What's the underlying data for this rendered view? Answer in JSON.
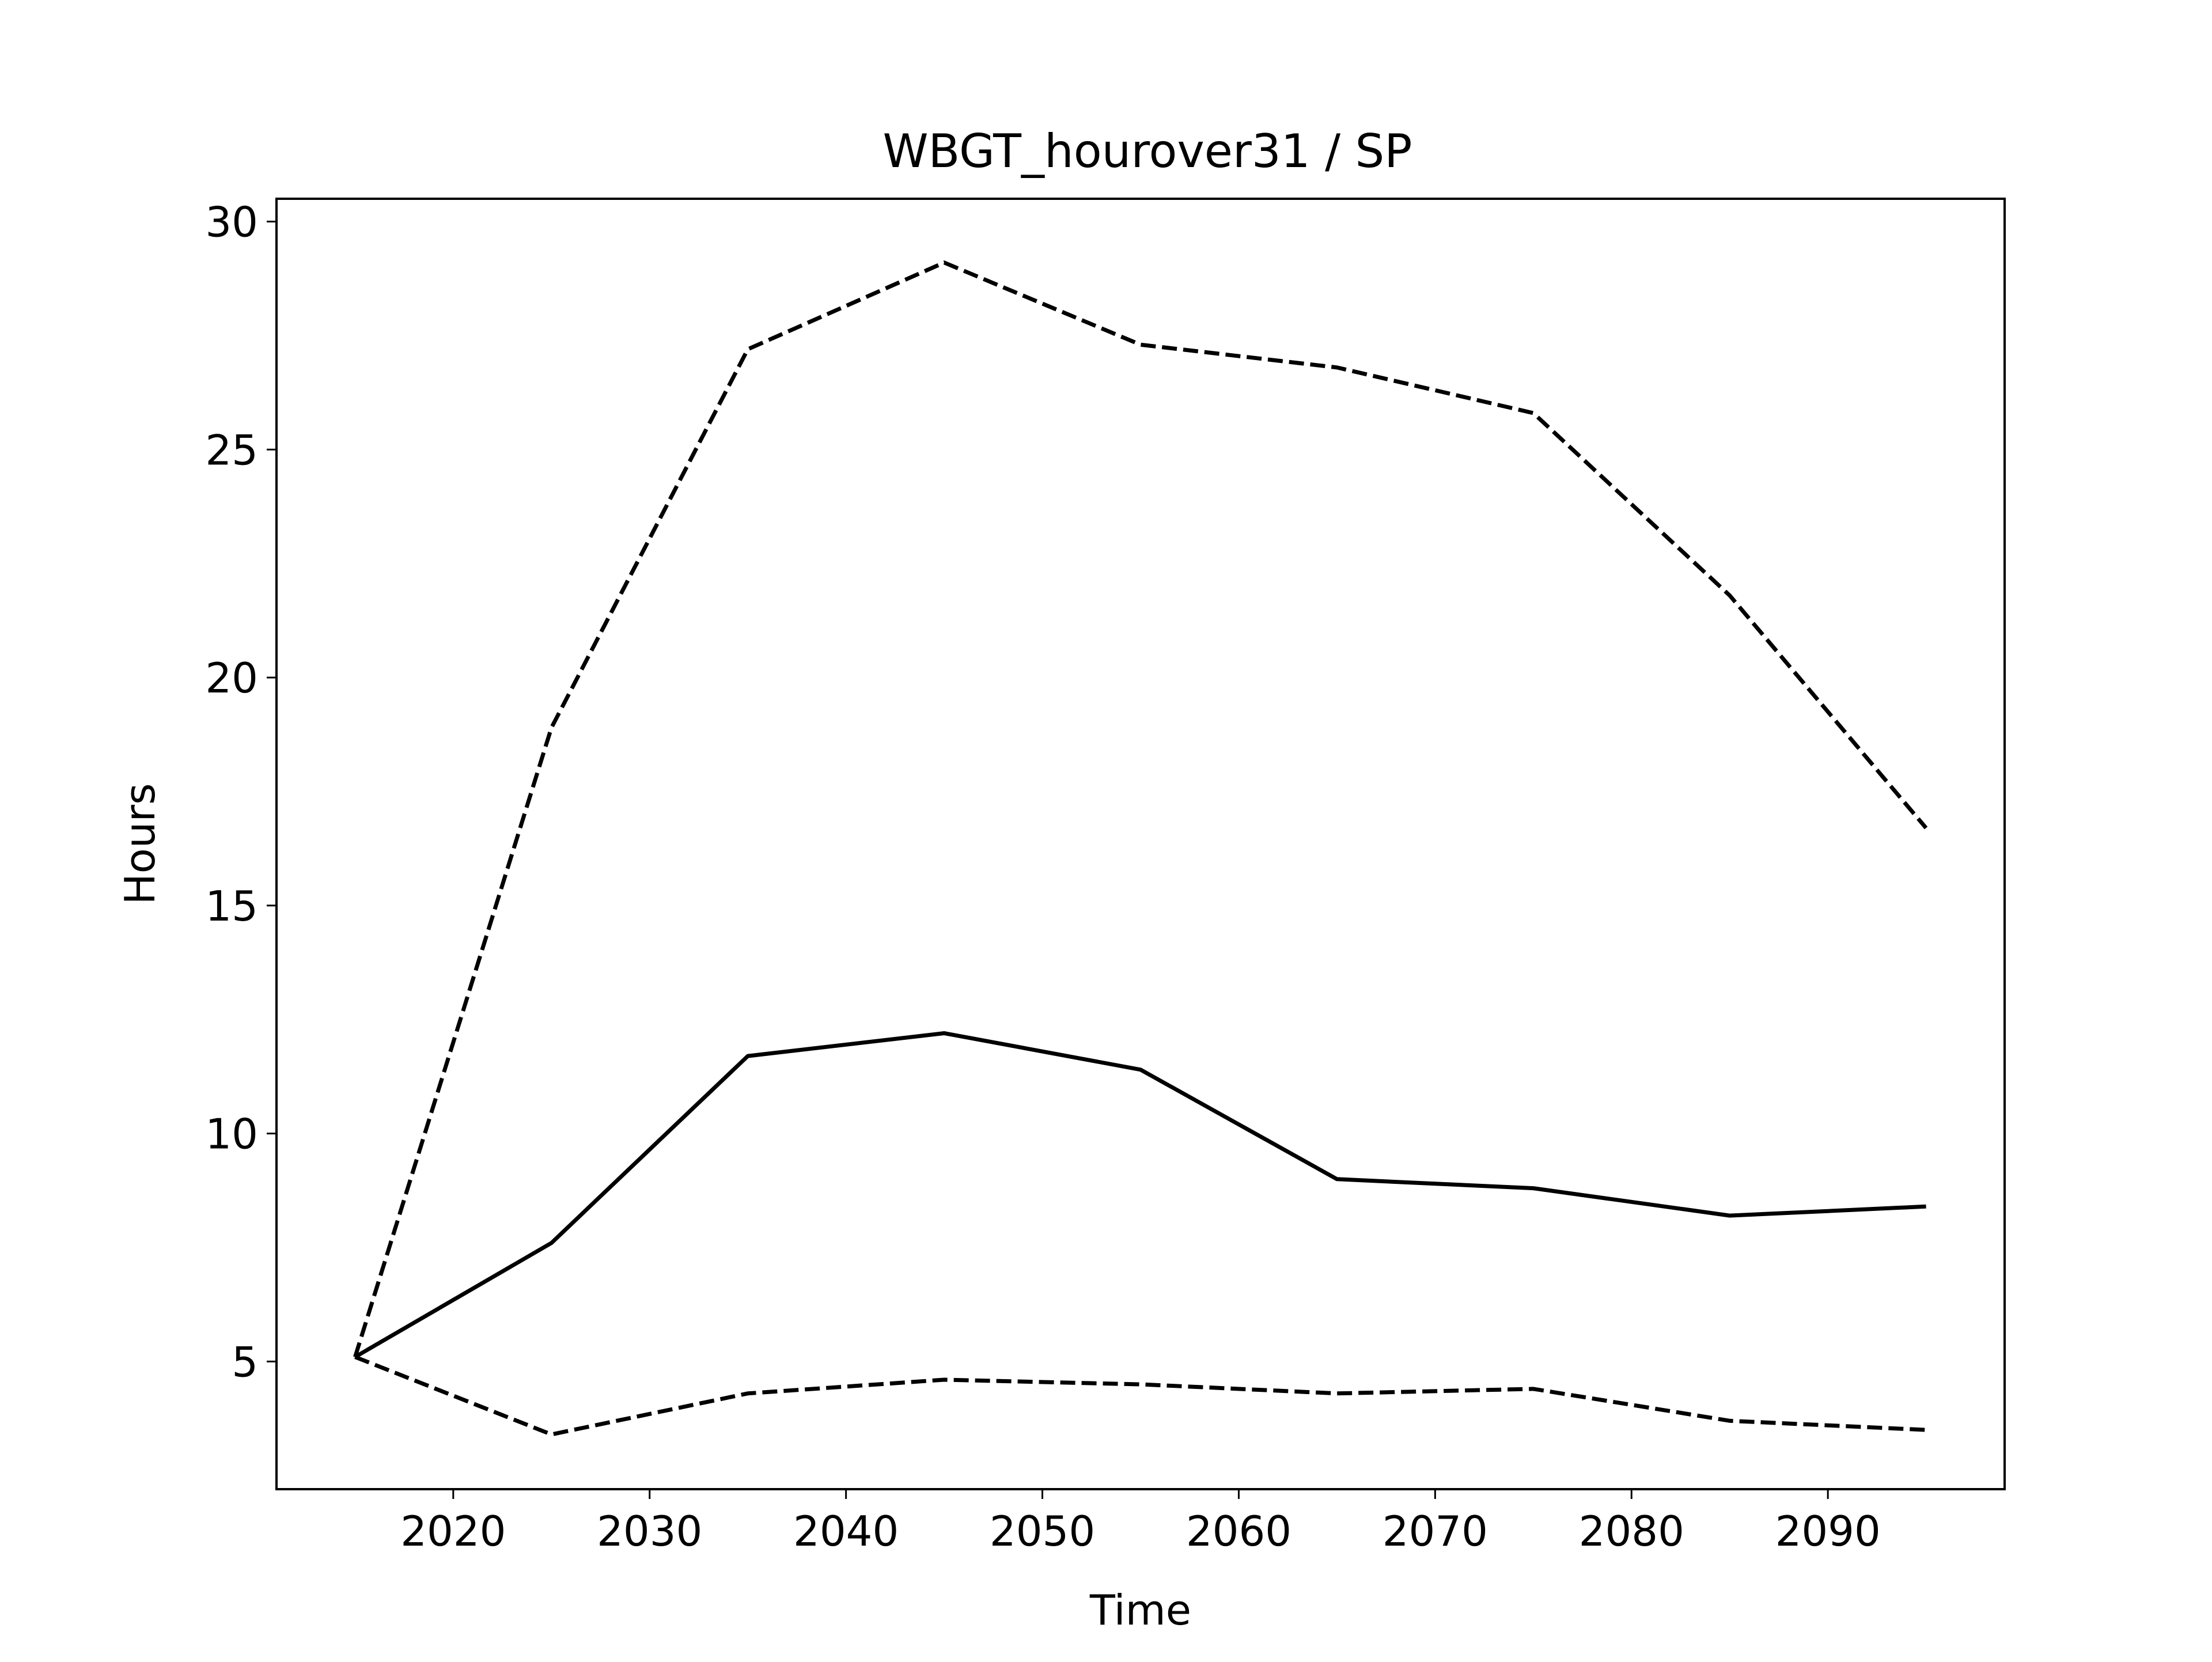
{
  "chart_data": {
    "type": "line",
    "title": "WBGT_hourover31 / SP",
    "xlabel": "Time",
    "ylabel": "Hours",
    "xlim": [
      2011,
      2099
    ],
    "ylim": [
      2.2,
      30.5
    ],
    "x_ticks": [
      2020,
      2030,
      2040,
      2050,
      2060,
      2070,
      2080,
      2090
    ],
    "y_ticks": [
      5,
      10,
      15,
      20,
      25,
      30
    ],
    "x_tick_labels": [
      "2020",
      "2030",
      "2040",
      "2050",
      "2060",
      "2070",
      "2080",
      "2090"
    ],
    "y_tick_labels": [
      "5",
      "10",
      "15",
      "20",
      "25",
      "30"
    ],
    "grid": false,
    "x": [
      2015,
      2025,
      2035,
      2045,
      2055,
      2065,
      2075,
      2085,
      2095
    ],
    "series": [
      {
        "style": "solid",
        "color": "#000000",
        "values": [
          5.1,
          7.6,
          11.7,
          12.2,
          11.4,
          9.0,
          8.8,
          8.2,
          8.4
        ]
      },
      {
        "style": "dashed",
        "color": "#000000",
        "values": [
          5.1,
          18.9,
          27.2,
          29.1,
          27.3,
          26.8,
          25.8,
          21.8,
          16.7
        ]
      },
      {
        "style": "dashed",
        "color": "#000000",
        "values": [
          5.1,
          3.4,
          4.3,
          4.6,
          4.5,
          4.3,
          4.4,
          3.7,
          3.5
        ]
      }
    ]
  }
}
